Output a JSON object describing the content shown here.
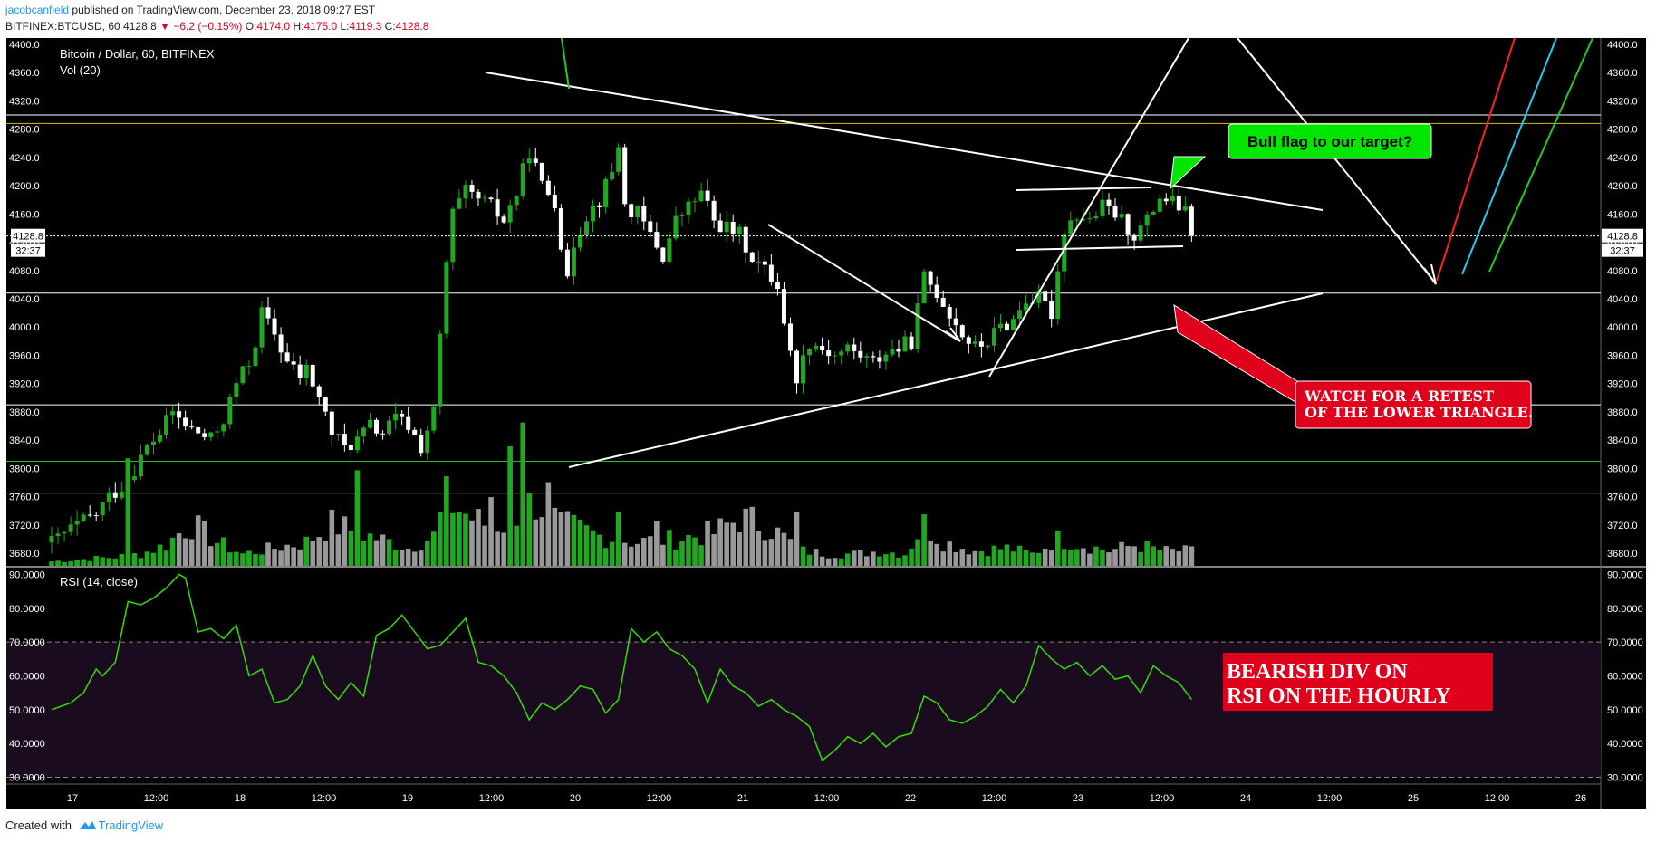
{
  "header": {
    "author": "jacobcanfield",
    "published": " published on TradingView.com, December 23, 2018 09:27 EST",
    "symbol_line": "BITFINEX:BTCUSD, 60",
    "last": "4128.8",
    "change": "−6.2 (−0.15%)",
    "o_label": "O:",
    "o": "4174.0",
    "h_label": "H:",
    "h": "4175.0",
    "l_label": "L:",
    "l": "4119.3",
    "c_label": "C:",
    "c": "4128.8"
  },
  "chart_title": "Bitcoin / Dollar, 60, BITFINEX",
  "vol_label": "Vol (20)",
  "rsi_label": "RSI (14, close)",
  "price_tag": "4128.8",
  "countdown": "32:37",
  "annotations": {
    "bull_flag": "Bull flag to our target?",
    "retest_1": "WATCH FOR A RETEST",
    "retest_2": "OF THE LOWER TRIANGLE.",
    "bearish_1": "BEARISH DIV ON",
    "bearish_2": "RSI ON THE HOURLY"
  },
  "footer": {
    "created": "Created with",
    "brand": "TradingView"
  },
  "colors": {
    "up": "#22a722",
    "down": "#ffffff",
    "vol_up": "#22a722",
    "vol_down": "#999999",
    "rsi": "#33dd00",
    "bg": "#000000",
    "annotation_red": "#e0001b",
    "annotation_green": "#00dd00"
  },
  "chart_data": [
    {
      "type": "candlestick",
      "title": "Bitcoin / Dollar, 60, BITFINEX",
      "timeframe": "60",
      "ylim": [
        3680,
        4400
      ],
      "y_ticks": [
        "4400.0",
        "4360.0",
        "4320.0",
        "4280.0",
        "4240.0",
        "4200.0",
        "4160.0",
        "4120.0",
        "4080.0",
        "4040.0",
        "4000.0",
        "3960.0",
        "3920.0",
        "3880.0",
        "3840.0",
        "3800.0",
        "3760.0",
        "3720.0",
        "3680.0"
      ],
      "x_ticks": [
        "17",
        "12:00",
        "18",
        "12:00",
        "19",
        "12:00",
        "20",
        "12:00",
        "21",
        "12:00",
        "22",
        "12:00",
        "23",
        "12:00",
        "24",
        "12:00",
        "25",
        "12:00",
        "26"
      ],
      "last_close": 4128.8,
      "horizontal_levels": [
        {
          "price": 4300,
          "color": "#ffffff"
        },
        {
          "price": 4288,
          "color": "#d4c100"
        },
        {
          "price": 4048,
          "color": "#ffffff"
        },
        {
          "price": 3890,
          "color": "#ffffff"
        },
        {
          "price": 3810,
          "color": "#22c222"
        },
        {
          "price": 3765,
          "color": "#ffffff"
        }
      ],
      "close_path": [
        [
          0,
          3695
        ],
        [
          4,
          3720
        ],
        [
          7,
          3735
        ],
        [
          9,
          3760
        ],
        [
          11,
          3775
        ],
        [
          13,
          3800
        ],
        [
          15,
          3830
        ],
        [
          17,
          3850
        ],
        [
          19,
          3880
        ],
        [
          21,
          3860
        ],
        [
          23,
          3850
        ],
        [
          25,
          3840
        ],
        [
          27,
          3870
        ],
        [
          29,
          3920
        ],
        [
          31,
          3950
        ],
        [
          32,
          3980
        ],
        [
          33,
          4020
        ],
        [
          35,
          3990
        ],
        [
          37,
          3950
        ],
        [
          39,
          3930
        ],
        [
          40,
          3940
        ],
        [
          42,
          3900
        ],
        [
          44,
          3850
        ],
        [
          46,
          3830
        ],
        [
          48,
          3840
        ],
        [
          50,
          3860
        ],
        [
          52,
          3850
        ],
        [
          54,
          3870
        ],
        [
          56,
          3860
        ],
        [
          58,
          3830
        ],
        [
          60,
          3880
        ],
        [
          62,
          4090
        ],
        [
          63,
          4160
        ],
        [
          65,
          4190
        ],
        [
          67,
          4180
        ],
        [
          69,
          4170
        ],
        [
          71,
          4150
        ],
        [
          73,
          4190
        ],
        [
          75,
          4250
        ],
        [
          77,
          4200
        ],
        [
          79,
          4180
        ],
        [
          81,
          4060
        ],
        [
          82,
          4120
        ],
        [
          84,
          4160
        ],
        [
          86,
          4180
        ],
        [
          88,
          4220
        ],
        [
          89,
          4260
        ],
        [
          90,
          4170
        ],
        [
          92,
          4160
        ],
        [
          94,
          4130
        ],
        [
          96,
          4100
        ],
        [
          98,
          4150
        ],
        [
          100,
          4170
        ],
        [
          102,
          4190
        ],
        [
          104,
          4150
        ],
        [
          106,
          4140
        ],
        [
          108,
          4130
        ],
        [
          110,
          4100
        ],
        [
          112,
          4080
        ],
        [
          114,
          4060
        ],
        [
          116,
          3960
        ],
        [
          117,
          3930
        ],
        [
          119,
          3980
        ],
        [
          121,
          3970
        ],
        [
          123,
          3960
        ],
        [
          125,
          3970
        ],
        [
          127,
          3960
        ],
        [
          129,
          3950
        ],
        [
          131,
          3965
        ],
        [
          133,
          3970
        ],
        [
          135,
          3980
        ],
        [
          137,
          4070
        ],
        [
          139,
          4050
        ],
        [
          141,
          4020
        ],
        [
          143,
          3990
        ],
        [
          145,
          3970
        ],
        [
          147,
          3980
        ],
        [
          149,
          4000
        ],
        [
          151,
          4010
        ],
        [
          153,
          4040
        ],
        [
          155,
          4040
        ],
        [
          157,
          4020
        ],
        [
          159,
          4140
        ],
        [
          161,
          4160
        ],
        [
          163,
          4150
        ],
        [
          165,
          4170
        ],
        [
          167,
          4160
        ],
        [
          169,
          4140
        ],
        [
          170,
          4130
        ],
        [
          172,
          4150
        ],
        [
          174,
          4185
        ],
        [
          175,
          4180
        ],
        [
          177,
          4170
        ],
        [
          178,
          4160
        ],
        [
          179,
          4128.8
        ]
      ],
      "volume": {
        "label": "Vol (20)",
        "profile": [
          [
            0,
            1.5
          ],
          [
            10,
            3
          ],
          [
            14,
            4
          ],
          [
            18,
            7
          ],
          [
            20,
            11
          ],
          [
            22,
            14
          ],
          [
            26,
            8
          ],
          [
            30,
            4
          ],
          [
            40,
            8
          ],
          [
            44,
            14
          ],
          [
            50,
            10
          ],
          [
            56,
            6
          ],
          [
            60,
            10
          ],
          [
            62,
            22
          ],
          [
            66,
            16
          ],
          [
            70,
            12
          ],
          [
            76,
            22
          ],
          [
            80,
            14
          ],
          [
            86,
            10
          ],
          [
            92,
            8
          ],
          [
            98,
            9
          ],
          [
            104,
            11
          ],
          [
            108,
            16
          ],
          [
            112,
            14
          ],
          [
            118,
            5
          ],
          [
            122,
            4
          ],
          [
            126,
            4
          ],
          [
            130,
            5
          ],
          [
            134,
            4
          ],
          [
            137,
            14
          ],
          [
            140,
            8
          ],
          [
            145,
            5
          ],
          [
            150,
            6
          ],
          [
            154,
            4
          ],
          [
            158,
            9
          ],
          [
            162,
            7
          ],
          [
            166,
            5
          ],
          [
            170,
            7
          ],
          [
            175,
            5
          ],
          [
            179,
            5
          ]
        ],
        "spikes": [
          [
            12,
            36
          ],
          [
            48,
            32
          ],
          [
            69,
            23
          ],
          [
            72,
            40
          ],
          [
            74,
            48
          ],
          [
            78,
            28
          ],
          [
            89,
            18
          ],
          [
            95,
            15
          ],
          [
            117,
            18
          ]
        ]
      }
    },
    {
      "type": "line",
      "title": "RSI (14, close)",
      "ylim": [
        28,
        92
      ],
      "y_ticks": [
        "90.0000",
        "80.0000",
        "70.0000",
        "60.0000",
        "50.0000",
        "40.0000",
        "30.0000"
      ],
      "bands": [
        70,
        30
      ],
      "x": [
        0,
        3,
        5,
        7,
        8,
        10,
        12,
        14,
        16,
        18,
        20,
        21,
        23,
        25,
        27,
        29,
        31,
        33,
        35,
        37,
        39,
        41,
        43,
        45,
        47,
        49,
        51,
        53,
        55,
        57,
        59,
        61,
        63,
        65,
        67,
        69,
        71,
        73,
        75,
        77,
        79,
        81,
        83,
        85,
        87,
        89,
        91,
        93,
        95,
        97,
        99,
        101,
        103,
        105,
        107,
        109,
        111,
        113,
        115,
        117,
        119,
        121,
        123,
        125,
        127,
        129,
        131,
        133,
        135,
        137,
        139,
        141,
        143,
        145,
        147,
        149,
        151,
        153,
        155,
        157,
        159,
        161,
        163,
        165,
        167,
        169,
        171,
        173,
        175,
        177,
        179
      ],
      "values": [
        50,
        52,
        55,
        62,
        60,
        64,
        82,
        81,
        83,
        86,
        90,
        89,
        73,
        74,
        71,
        75,
        60,
        62,
        52,
        53,
        57,
        66,
        57,
        53,
        58,
        54,
        72,
        74,
        78,
        73,
        68,
        69,
        73,
        77,
        64,
        63,
        60,
        55,
        47,
        52,
        50,
        53,
        57,
        56,
        49,
        53,
        74,
        70,
        73,
        68,
        66,
        62,
        52,
        62,
        57,
        55,
        51,
        53,
        50,
        48,
        45,
        35,
        38,
        42,
        40,
        43,
        39,
        42,
        43,
        54,
        52,
        47,
        46,
        48,
        51,
        56,
        52,
        57,
        69,
        65,
        62,
        64,
        60,
        63,
        59,
        60,
        55,
        63,
        60,
        58,
        53
      ]
    }
  ]
}
